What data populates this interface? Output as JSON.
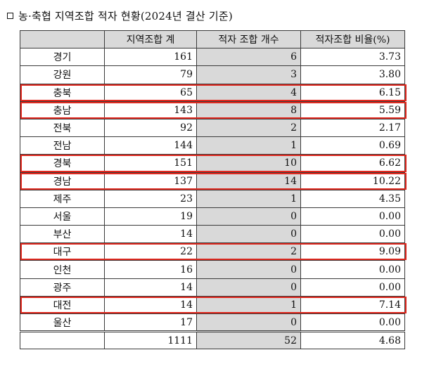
{
  "title": "농·축협 지역조합 적자 현황(2024년 결산 기준)",
  "headers": [
    "",
    "지역조합 계",
    "적자 조합 개수",
    "적자조합 비율(%)"
  ],
  "rows": [
    {
      "region": "경기",
      "total": "161",
      "deficit": "6",
      "ratio": "3.73",
      "highlight": false
    },
    {
      "region": "강원",
      "total": "79",
      "deficit": "3",
      "ratio": "3.80",
      "highlight": false
    },
    {
      "region": "충북",
      "total": "65",
      "deficit": "4",
      "ratio": "6.15",
      "highlight": true
    },
    {
      "region": "충남",
      "total": "143",
      "deficit": "8",
      "ratio": "5.59",
      "highlight": true
    },
    {
      "region": "전북",
      "total": "92",
      "deficit": "2",
      "ratio": "2.17",
      "highlight": false
    },
    {
      "region": "전남",
      "total": "144",
      "deficit": "1",
      "ratio": "0.69",
      "highlight": false
    },
    {
      "region": "경북",
      "total": "151",
      "deficit": "10",
      "ratio": "6.62",
      "highlight": true
    },
    {
      "region": "경남",
      "total": "137",
      "deficit": "14",
      "ratio": "10.22",
      "highlight": true
    },
    {
      "region": "제주",
      "total": "23",
      "deficit": "1",
      "ratio": "4.35",
      "highlight": false
    },
    {
      "region": "서울",
      "total": "19",
      "deficit": "0",
      "ratio": "0.00",
      "highlight": false
    },
    {
      "region": "부산",
      "total": "14",
      "deficit": "0",
      "ratio": "0.00",
      "highlight": false
    },
    {
      "region": "대구",
      "total": "22",
      "deficit": "2",
      "ratio": "9.09",
      "highlight": true
    },
    {
      "region": "인천",
      "total": "16",
      "deficit": "0",
      "ratio": "0.00",
      "highlight": false
    },
    {
      "region": "광주",
      "total": "14",
      "deficit": "0",
      "ratio": "0.00",
      "highlight": false
    },
    {
      "region": "대전",
      "total": "14",
      "deficit": "1",
      "ratio": "7.14",
      "highlight": true
    },
    {
      "region": "울산",
      "total": "17",
      "deficit": "0",
      "ratio": "0.00",
      "highlight": false
    }
  ],
  "total_row": {
    "region": "",
    "total": "1111",
    "deficit": "52",
    "ratio": "4.68"
  },
  "colors": {
    "highlight_border": "#e0281e",
    "header_bg": "#d9d9d9"
  }
}
